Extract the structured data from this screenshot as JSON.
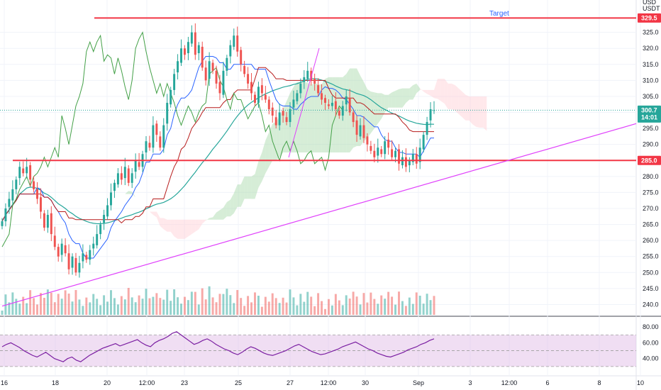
{
  "header": {
    "currency": "USDT",
    "currency_top": "USD"
  },
  "annotation": {
    "target_label": "Target"
  },
  "price_tags": {
    "resistance": "329.5",
    "support": "285.0",
    "last_price": "300.7",
    "countdown": "14:01"
  },
  "colors": {
    "up": "#26a69a",
    "down": "#ef5350",
    "horizontal_line": "#f23645",
    "trendline": "#e040fb",
    "tenkan": "#2962ff",
    "kijun": "#b71c1c",
    "chikou": "#43a047",
    "cloud_bull": "#a5d6a7",
    "cloud_bear": "#ffcdd2",
    "ma": "#26a69a",
    "rsi": "#7b1fa2",
    "rsi_band": "#e1bee7"
  },
  "chart_data": {
    "type": "candlestick",
    "symbol_quote": "USDT",
    "ylim": [
      237,
      334
    ],
    "y_ticks": [
      240,
      245,
      250,
      255,
      260,
      265,
      270,
      275,
      280,
      285,
      290,
      295,
      300,
      305,
      310,
      315,
      320,
      325
    ],
    "x_labels": [
      "16",
      "18",
      "20",
      "12:00",
      "23",
      "25",
      "27",
      "12:00",
      "30",
      "Sep",
      "3",
      "12:00",
      "6",
      "8",
      "10"
    ],
    "horizontal_levels": [
      329.5,
      285.0
    ],
    "last_price": 300.7,
    "trendline": {
      "from": [
        0,
        239.5
      ],
      "to": [
        98,
        296.5
      ]
    },
    "target_text": "Target",
    "closes": [
      266,
      270,
      273,
      276,
      279,
      283,
      281,
      283,
      279,
      276,
      273,
      269,
      264,
      268,
      262,
      258,
      255,
      259,
      256,
      251,
      255,
      250,
      253,
      256,
      254,
      257,
      259,
      262,
      265,
      268,
      271,
      275,
      278,
      281,
      279,
      283,
      278,
      281,
      285,
      283,
      287,
      291,
      289,
      296,
      293,
      289,
      296,
      303,
      307,
      312,
      316,
      320,
      318,
      322,
      325,
      318,
      321,
      314,
      310,
      316,
      313,
      309,
      306,
      313,
      317,
      321,
      324,
      319,
      315,
      312,
      309,
      306,
      303,
      308,
      306,
      304,
      301,
      299,
      296,
      300,
      299,
      297,
      301,
      304,
      306,
      309,
      311,
      313,
      310,
      309,
      306,
      304,
      303,
      302,
      303,
      301,
      299,
      302,
      305,
      300,
      297,
      293,
      296,
      292,
      290,
      288,
      286,
      289,
      287,
      291,
      289,
      286,
      288,
      284,
      286,
      283,
      285,
      287,
      284,
      289,
      293,
      297,
      301,
      300.7
    ],
    "volume_panel": {
      "note": "volume bars beneath price"
    },
    "rsi": {
      "levels": [
        80,
        60,
        40
      ],
      "band": [
        70,
        30
      ],
      "values": [
        55,
        58,
        60,
        57,
        54,
        50,
        47,
        44,
        42,
        45,
        48,
        44,
        40,
        38,
        36,
        40,
        42,
        38,
        36,
        40,
        44,
        47,
        50,
        53,
        55,
        57,
        59,
        56,
        58,
        60,
        62,
        64,
        60,
        57,
        55,
        60,
        63,
        65,
        68,
        72,
        74,
        70,
        66,
        62,
        58,
        60,
        63,
        65,
        62,
        58,
        55,
        52,
        50,
        47,
        45,
        48,
        52,
        55,
        53,
        50,
        47,
        45,
        44,
        46,
        48,
        50,
        53,
        56,
        58,
        55,
        52,
        49,
        47,
        45,
        46,
        48,
        50,
        52,
        55,
        57,
        59,
        61,
        58,
        55,
        52,
        50,
        47,
        45,
        43,
        42,
        44,
        46,
        48,
        51,
        53,
        55,
        58,
        60,
        63,
        65
      ]
    }
  }
}
